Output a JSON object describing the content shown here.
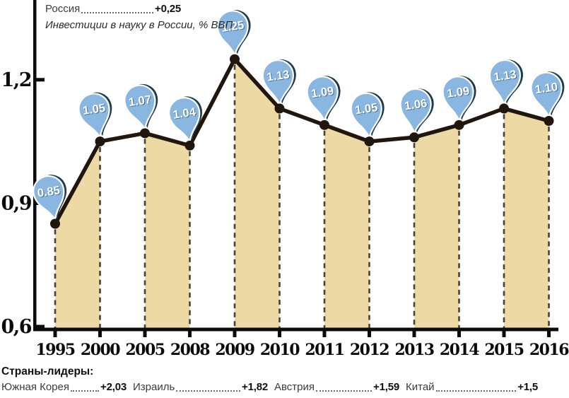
{
  "header": {
    "series_label": "Россия",
    "series_value": "+0,25",
    "subtitle": "Инвестиции в науку в России, % ВВП"
  },
  "chart_data": {
    "type": "line",
    "title": "Инвестиции в науку в России, % ВВП",
    "categories": [
      "1995",
      "2000",
      "2005",
      "2008",
      "2009",
      "2010",
      "2011",
      "2012",
      "2013",
      "2014",
      "2015",
      "2016"
    ],
    "values": [
      0.85,
      1.05,
      1.07,
      1.04,
      1.25,
      1.13,
      1.09,
      1.05,
      1.06,
      1.09,
      1.13,
      1.1
    ],
    "point_labels": [
      "0.85",
      "1.05",
      "1.07",
      "1.04",
      "1.25",
      "1.13",
      "1.09",
      "1.05",
      "1.06",
      "1.09",
      "1.13",
      "1.10"
    ],
    "y_ticks": [
      {
        "label": "1,2",
        "value": 1.2
      },
      {
        "label": "0,9",
        "value": 0.9
      },
      {
        "label": "0,6",
        "value": 0.6
      }
    ],
    "ylim": [
      0.6,
      1.3
    ],
    "shaded_intervals": [
      [
        0,
        1
      ],
      [
        2,
        3
      ],
      [
        4,
        5
      ],
      [
        6,
        7
      ],
      [
        8,
        9
      ],
      [
        10,
        11
      ]
    ],
    "grid": "vertical dashed droplines from each point to baseline",
    "legend_position": "none",
    "marker_style": "blue teardrop pin with value label above each point"
  },
  "footer": {
    "title": "Страны-лидеры:",
    "entries": [
      {
        "name": "Южная Корея",
        "value": "+2,03"
      },
      {
        "name": "Израиль",
        "value": "+1,82"
      },
      {
        "name": "Австрия",
        "value": "+1,59"
      },
      {
        "name": "Китай",
        "value": "+1,5"
      }
    ]
  },
  "colors": {
    "pin_fill": "#89b7e1",
    "pin_shadow": "#1d3b48",
    "pin_text": "#ffffff",
    "band": "#ecd9a4",
    "line": "#20160e",
    "dash": "#46413a",
    "axis": "#0c0c10"
  }
}
